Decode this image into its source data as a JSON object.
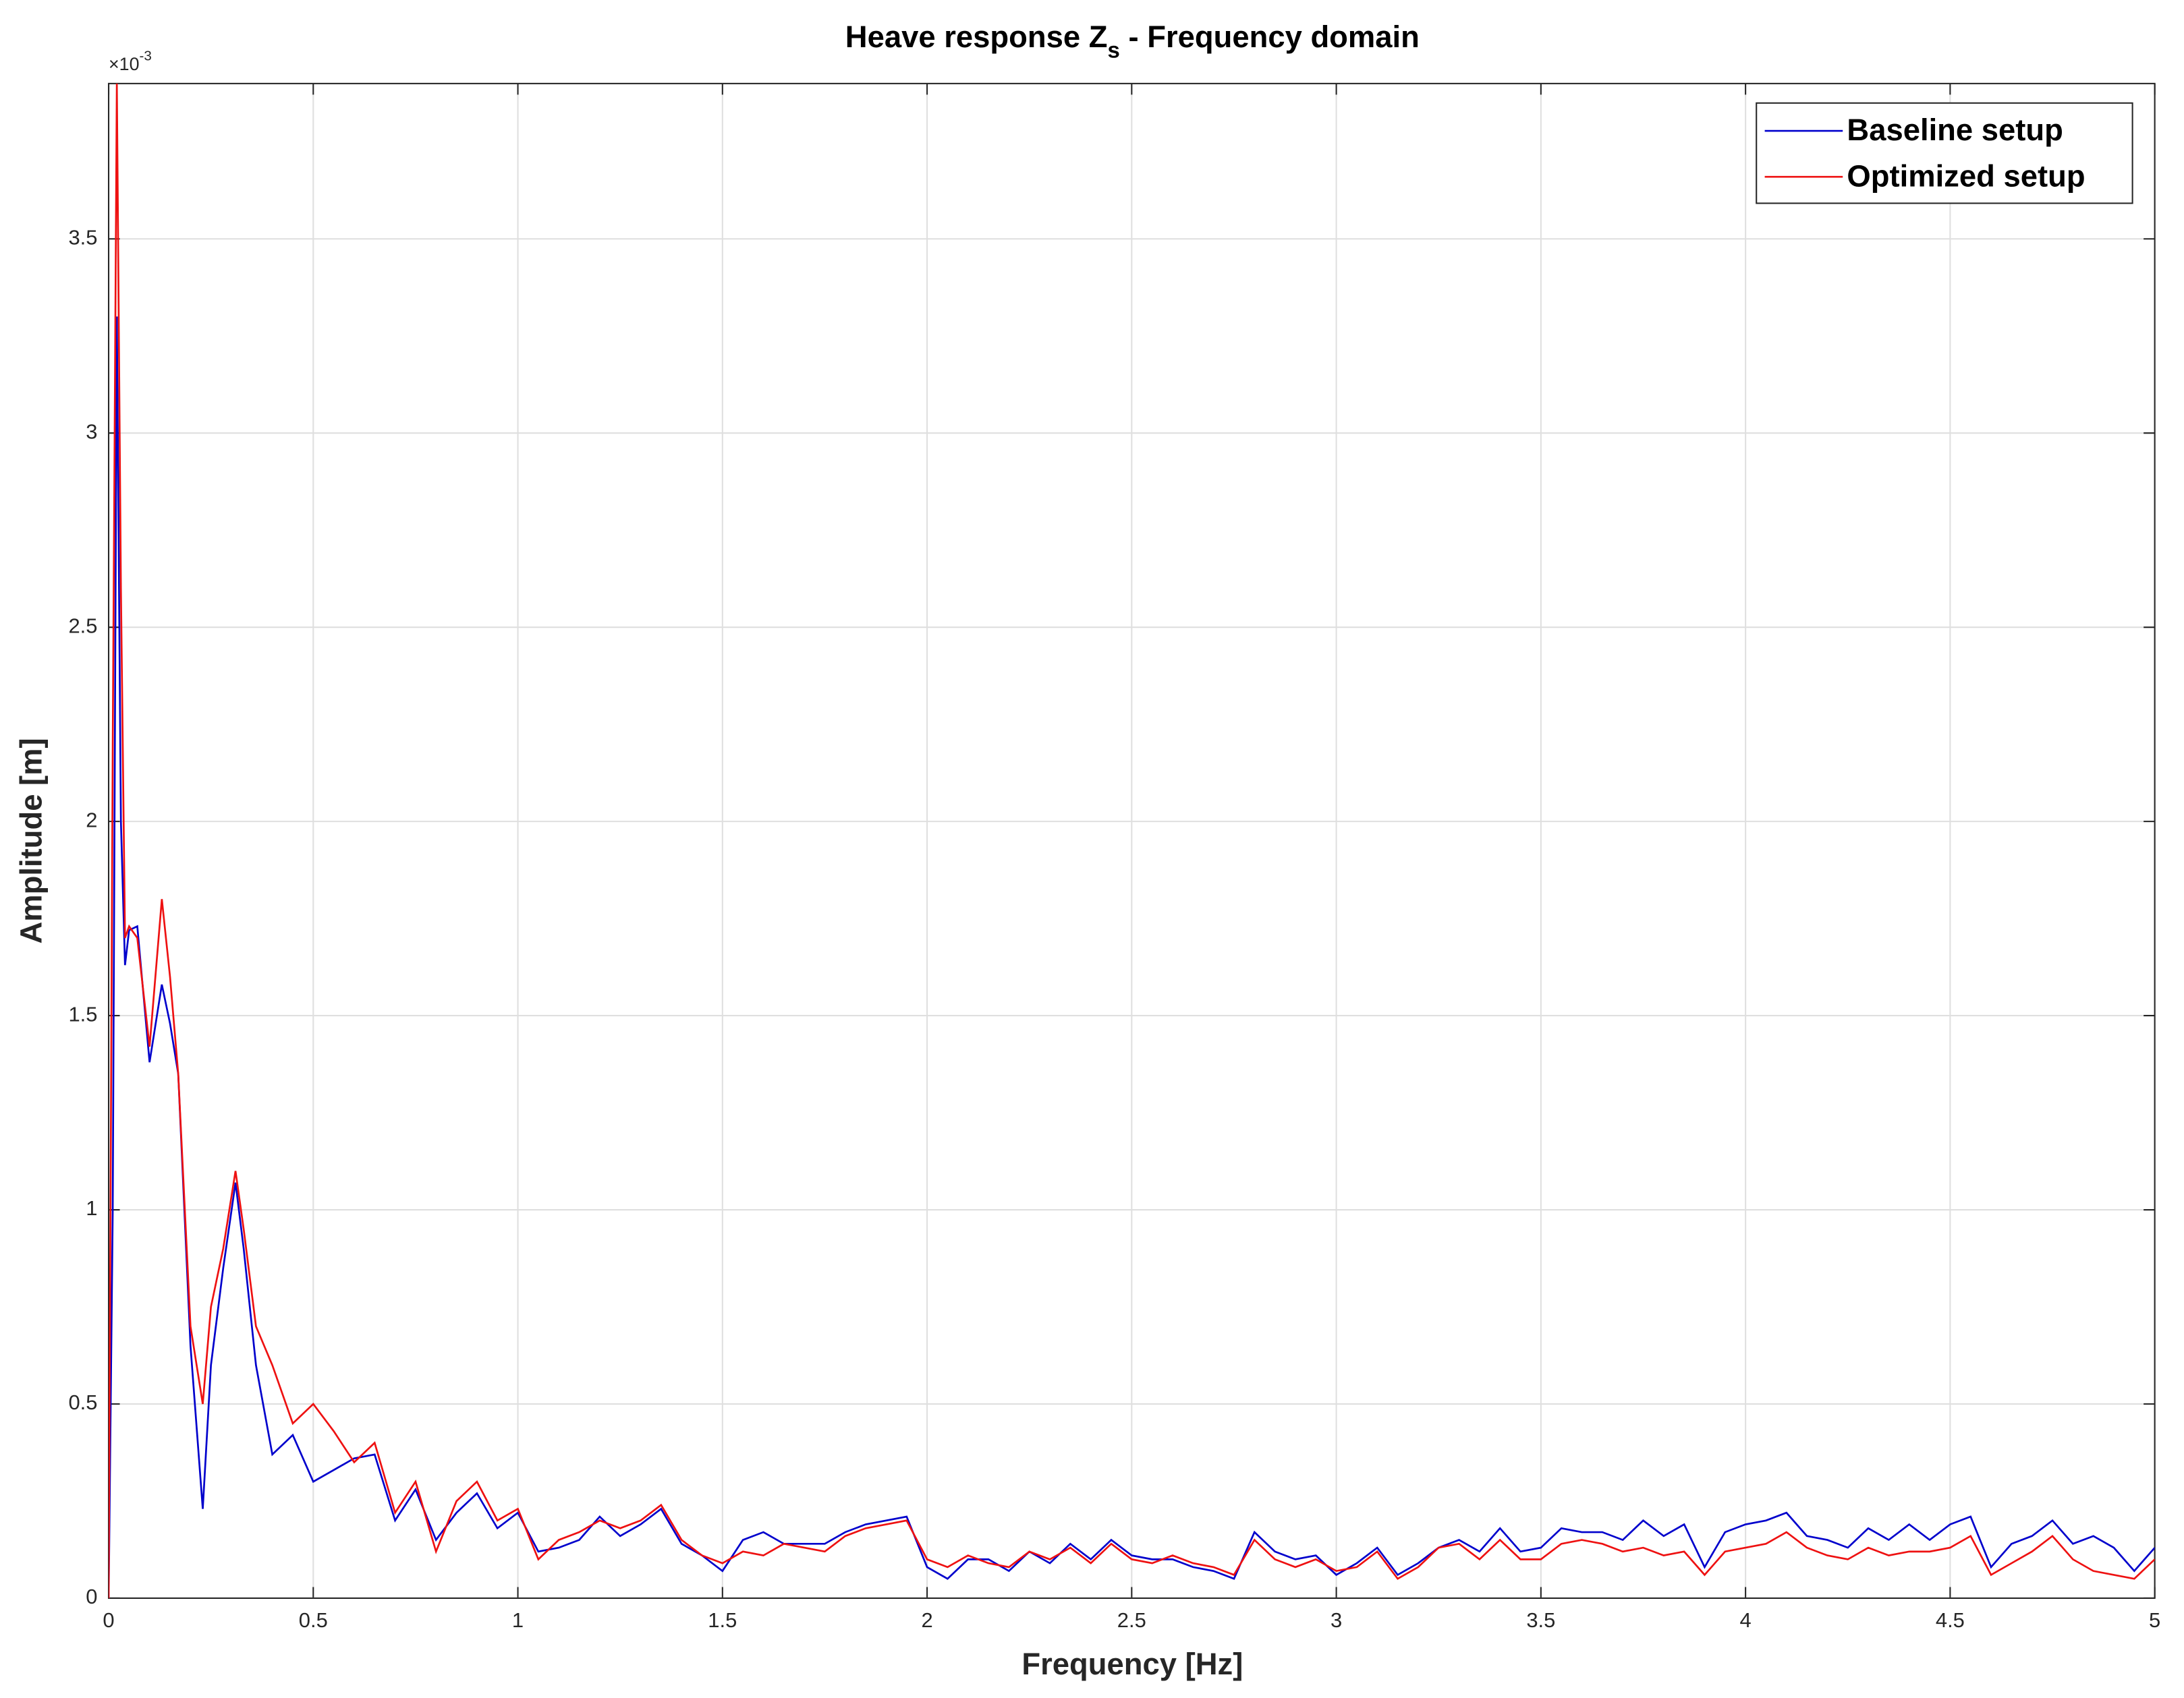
{
  "chart_data": {
    "type": "line",
    "title": {
      "text": "Heave response Z",
      "subscript": "s",
      "suffix": " - Frequency domain"
    },
    "x_label": "Frequency [Hz]",
    "y_label": "Amplitude [m]",
    "y_exponent": {
      "base": "×10",
      "power": "-3"
    },
    "xlim": [
      0,
      5
    ],
    "ylim": [
      0,
      3.9
    ],
    "xticks": [
      0,
      0.5,
      1,
      1.5,
      2,
      2.5,
      3,
      3.5,
      4,
      4.5,
      5
    ],
    "yticks": [
      0,
      0.5,
      1,
      1.5,
      2,
      2.5,
      3,
      3.5
    ],
    "grid": true,
    "legend": "top-right",
    "x": [
      0,
      0.01,
      0.02,
      0.03,
      0.04,
      0.05,
      0.07,
      0.1,
      0.13,
      0.15,
      0.17,
      0.2,
      0.23,
      0.25,
      0.28,
      0.31,
      0.33,
      0.36,
      0.4,
      0.45,
      0.5,
      0.55,
      0.6,
      0.65,
      0.7,
      0.75,
      0.8,
      0.85,
      0.9,
      0.95,
      1,
      1.05,
      1.1,
      1.15,
      1.2,
      1.25,
      1.3,
      1.35,
      1.4,
      1.45,
      1.5,
      1.55,
      1.6,
      1.65,
      1.7,
      1.75,
      1.8,
      1.85,
      1.9,
      1.95,
      2,
      2.05,
      2.1,
      2.15,
      2.2,
      2.25,
      2.3,
      2.35,
      2.4,
      2.45,
      2.5,
      2.55,
      2.6,
      2.65,
      2.7,
      2.75,
      2.8,
      2.85,
      2.9,
      2.95,
      3,
      3.05,
      3.1,
      3.15,
      3.2,
      3.25,
      3.3,
      3.35,
      3.4,
      3.45,
      3.5,
      3.55,
      3.6,
      3.65,
      3.7,
      3.75,
      3.8,
      3.85,
      3.9,
      3.95,
      4,
      4.05,
      4.1,
      4.15,
      4.2,
      4.25,
      4.3,
      4.35,
      4.4,
      4.45,
      4.5,
      4.55,
      4.6,
      4.65,
      4.7,
      4.75,
      4.8,
      4.85,
      4.9,
      4.95,
      5
    ],
    "series": [
      {
        "name": "Baseline setup",
        "color": "#0000cc",
        "values": [
          0,
          1.0,
          3.3,
          2.0,
          1.63,
          1.72,
          1.73,
          1.38,
          1.58,
          1.48,
          1.35,
          0.65,
          0.23,
          0.6,
          0.85,
          1.07,
          0.9,
          0.6,
          0.37,
          0.42,
          0.3,
          0.33,
          0.36,
          0.37,
          0.2,
          0.28,
          0.15,
          0.22,
          0.27,
          0.18,
          0.22,
          0.12,
          0.13,
          0.15,
          0.21,
          0.16,
          0.19,
          0.23,
          0.14,
          0.11,
          0.07,
          0.15,
          0.17,
          0.14,
          0.14,
          0.14,
          0.17,
          0.19,
          0.2,
          0.21,
          0.08,
          0.05,
          0.1,
          0.1,
          0.07,
          0.12,
          0.09,
          0.14,
          0.1,
          0.15,
          0.11,
          0.1,
          0.1,
          0.08,
          0.07,
          0.05,
          0.17,
          0.12,
          0.1,
          0.11,
          0.06,
          0.09,
          0.13,
          0.06,
          0.09,
          0.13,
          0.15,
          0.12,
          0.18,
          0.12,
          0.13,
          0.18,
          0.17,
          0.17,
          0.15,
          0.2,
          0.16,
          0.19,
          0.08,
          0.17,
          0.19,
          0.2,
          0.22,
          0.16,
          0.15,
          0.13,
          0.18,
          0.15,
          0.19,
          0.15,
          0.19,
          0.21,
          0.08,
          0.14,
          0.16,
          0.2,
          0.14,
          0.16,
          0.13,
          0.07,
          0.13
        ]
      },
      {
        "name": "Optimized setup",
        "color": "#ee1111",
        "values": [
          0,
          2.2,
          3.9,
          2.6,
          1.7,
          1.73,
          1.7,
          1.42,
          1.8,
          1.6,
          1.35,
          0.7,
          0.5,
          0.75,
          0.9,
          1.1,
          0.95,
          0.7,
          0.6,
          0.45,
          0.5,
          0.43,
          0.35,
          0.4,
          0.22,
          0.3,
          0.12,
          0.25,
          0.3,
          0.2,
          0.23,
          0.1,
          0.15,
          0.17,
          0.2,
          0.18,
          0.2,
          0.24,
          0.15,
          0.11,
          0.09,
          0.12,
          0.11,
          0.14,
          0.13,
          0.12,
          0.16,
          0.18,
          0.19,
          0.2,
          0.1,
          0.08,
          0.11,
          0.09,
          0.08,
          0.12,
          0.1,
          0.13,
          0.09,
          0.14,
          0.1,
          0.09,
          0.11,
          0.09,
          0.08,
          0.06,
          0.15,
          0.1,
          0.08,
          0.1,
          0.07,
          0.08,
          0.12,
          0.05,
          0.08,
          0.13,
          0.14,
          0.1,
          0.15,
          0.1,
          0.1,
          0.14,
          0.15,
          0.14,
          0.12,
          0.13,
          0.11,
          0.12,
          0.06,
          0.12,
          0.13,
          0.14,
          0.17,
          0.13,
          0.11,
          0.1,
          0.13,
          0.11,
          0.12,
          0.12,
          0.13,
          0.16,
          0.06,
          0.09,
          0.12,
          0.16,
          0.1,
          0.07,
          0.06,
          0.05,
          0.1
        ]
      }
    ]
  }
}
